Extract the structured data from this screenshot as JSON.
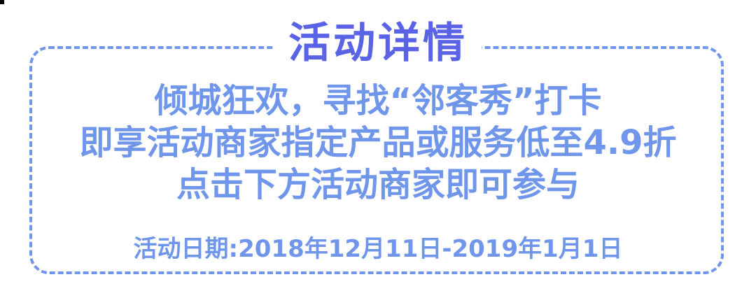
{
  "title": "活动详情",
  "lines": [
    "倾城狂欢，寻找“邻客秀”打卡",
    "即享活动商家指定产品或服务低至4.9折",
    "点击下方活动商家即可参与"
  ],
  "date_line": "活动日期:2018年12月11日-2019年1月1日",
  "colors": {
    "title": "#5a63e6",
    "body": "#6f96ea",
    "border": "#6f96ea"
  }
}
